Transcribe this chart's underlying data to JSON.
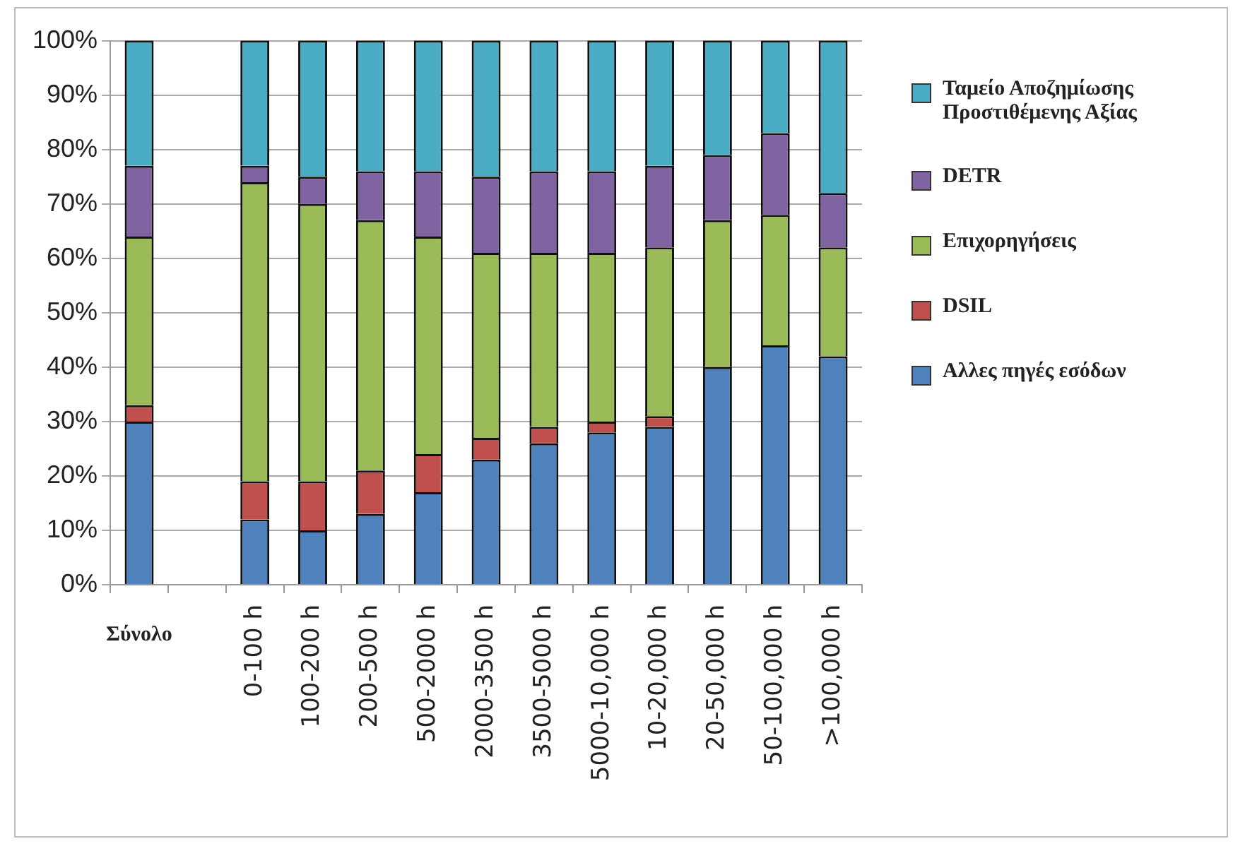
{
  "chart_data": {
    "type": "bar",
    "stacked": true,
    "categories": [
      "Σύνολο",
      null,
      "0-100 h",
      "100-200 h",
      "200-500 h",
      "500-2000 h",
      "2000-3500 h",
      "3500-5000 h",
      "5000-10,000 h",
      "10-20,000 h",
      "20-50,000 h",
      "50-100,000 h",
      ">100,000 h"
    ],
    "series": [
      {
        "name": "Αλλες πηγές εσόδων",
        "color": "#4f81bd",
        "values": [
          30,
          null,
          12,
          10,
          13,
          17,
          23,
          26,
          28,
          29,
          40,
          44,
          42
        ]
      },
      {
        "name": "DSIL",
        "color": "#c0504d",
        "values": [
          3,
          null,
          7,
          9,
          8,
          7,
          4,
          3,
          2,
          2,
          0,
          0,
          0
        ]
      },
      {
        "name": "Επιχορηγήσεις",
        "color": "#9bbb59",
        "values": [
          31,
          null,
          55,
          51,
          46,
          40,
          34,
          32,
          31,
          31,
          27,
          24,
          20
        ]
      },
      {
        "name": "DETR",
        "color": "#8064a2",
        "values": [
          13,
          null,
          3,
          5,
          9,
          12,
          14,
          15,
          15,
          15,
          12,
          15,
          10
        ]
      },
      {
        "name": "Ταμείο Αποζημίωσης Προστιθέμενης Αξίας",
        "color": "#4bacc6",
        "values": [
          23,
          null,
          23,
          25,
          24,
          24,
          25,
          24,
          24,
          23,
          21,
          17,
          28
        ]
      }
    ],
    "ylim": [
      0,
      100
    ],
    "yticks": [
      {
        "value": 0,
        "label": "0%"
      },
      {
        "value": 10,
        "label": "10%"
      },
      {
        "value": 20,
        "label": "20%"
      },
      {
        "value": 30,
        "label": "30%"
      },
      {
        "value": 40,
        "label": "40%"
      },
      {
        "value": 50,
        "label": "50%"
      },
      {
        "value": 60,
        "label": "60%"
      },
      {
        "value": 70,
        "label": "70%"
      },
      {
        "value": 80,
        "label": "80%"
      },
      {
        "value": 90,
        "label": "90%"
      },
      {
        "value": 100,
        "label": "100%"
      }
    ],
    "grid": "y",
    "legend": "right"
  }
}
